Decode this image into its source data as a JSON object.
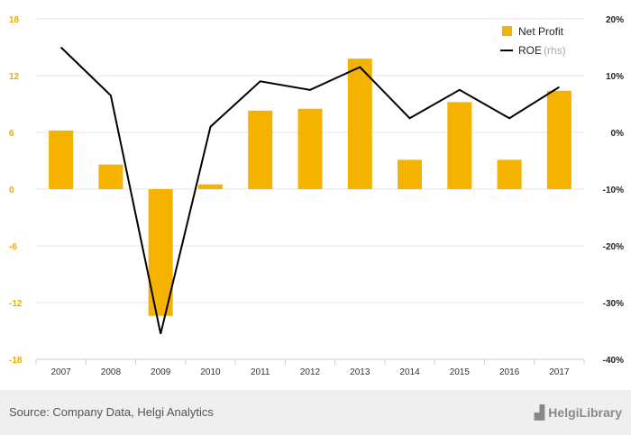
{
  "chart_data": {
    "type": "bar+line",
    "categories": [
      "2007",
      "2008",
      "2009",
      "2010",
      "2011",
      "2012",
      "2013",
      "2014",
      "2015",
      "2016",
      "2017"
    ],
    "series": [
      {
        "name": "Net Profit",
        "type": "bar",
        "axis": "left",
        "color": "#f5b300",
        "values": [
          6.2,
          2.6,
          -13.4,
          0.5,
          8.3,
          8.5,
          13.8,
          3.1,
          9.2,
          3.1,
          10.4
        ]
      },
      {
        "name": "ROE",
        "type": "line",
        "axis": "right",
        "color": "#000000",
        "values": [
          15.0,
          6.5,
          -35.5,
          1.0,
          9.0,
          7.5,
          11.5,
          2.5,
          7.5,
          2.5,
          8.0
        ]
      }
    ],
    "left_axis": {
      "ticks": [
        "18",
        "12",
        "6",
        "0",
        "-6",
        "-12",
        "-18"
      ],
      "ylim": [
        -18,
        18
      ]
    },
    "right_axis": {
      "ticks": [
        "20%",
        "10%",
        "0%",
        "-10%",
        "-20%",
        "-30%",
        "-40%"
      ],
      "ylim": [
        -40,
        20
      ]
    },
    "legend": {
      "placement": "top-right",
      "items": [
        {
          "label": "Net Profit",
          "suffix": ""
        },
        {
          "label": "ROE",
          "suffix": "(rhs)"
        }
      ]
    },
    "grid": true
  },
  "footer": {
    "source": "Source: Company Data, Helgi Analytics",
    "brand": "HelgiLibrary",
    "brand_icon": "bar-chart-icon"
  }
}
